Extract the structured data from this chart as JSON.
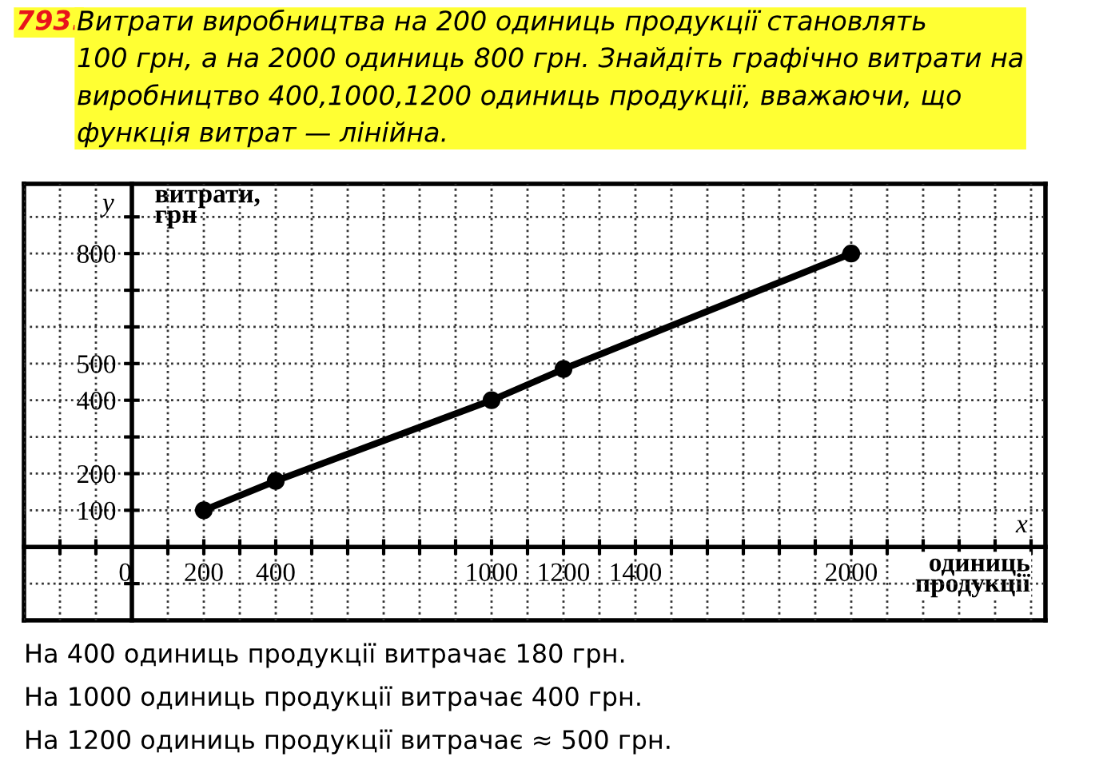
{
  "chart_data": {
    "type": "line",
    "title": "793.",
    "subtitle": "Витрати виробництва на 200 одиниць продукції становлять\n100 грн, а на 2000 одиниць 800 грн. Знайдіть графічно витрати на\nвиробництво 400,1000,1200 одиниць продукції, вважаючи, що\nфункція витрат — лінійна.",
    "xlabel": "одиниць\nпродукції",
    "ylabel": "витрати,\nгрн",
    "x": [
      200,
      400,
      1000,
      1200,
      2000
    ],
    "series": [
      {
        "color": "#000000",
        "values": [
          100,
          180,
          400,
          485,
          800
        ]
      }
    ],
    "marker": "circle",
    "line_style": "solid",
    "grid": true,
    "xlim": [
      -300,
      2540
    ],
    "ylim": [
      -200,
      990
    ],
    "xticks": [
      {
        "value": -300,
        "label": null
      },
      {
        "value": -200,
        "label": null
      },
      {
        "value": -100,
        "label": null
      },
      0,
      {
        "value": 100,
        "label": null
      },
      200,
      {
        "value": 300,
        "label": null
      },
      400,
      {
        "value": 500,
        "label": null
      },
      {
        "value": 600,
        "label": null
      },
      {
        "value": 700,
        "label": null
      },
      {
        "value": 800,
        "label": null
      },
      {
        "value": 900,
        "label": null
      },
      1000,
      {
        "value": 1100,
        "label": null
      },
      1200,
      {
        "value": 1300,
        "label": null
      },
      1400,
      {
        "value": 1500,
        "label": null
      },
      {
        "value": 1600,
        "label": null
      },
      {
        "value": 1700,
        "label": null
      },
      {
        "value": 1800,
        "label": null
      },
      {
        "value": 1900,
        "label": null
      },
      2000,
      {
        "value": 2100,
        "label": null
      },
      {
        "value": 2200,
        "label": null
      },
      {
        "value": 2300,
        "label": null
      },
      {
        "value": 2400,
        "label": null
      },
      {
        "value": 2500,
        "label": null
      }
    ],
    "yticks": [
      {
        "value": -100,
        "label": null
      },
      {
        "value": 100,
        "label": "100"
      },
      200,
      {
        "value": 300,
        "label": null
      },
      400,
      500,
      {
        "value": 600,
        "label": null
      },
      {
        "value": 700,
        "label": null
      },
      800,
      {
        "value": 900,
        "label": null
      }
    ],
    "annotations": [
      "y",
      "x",
      "На 400 одиниць продукції витрачає 180 грн.",
      "На 1000 одиниць продукції витрачає 400 грн.",
      "На 1200 одиниць продукції витрачає ≈ 500 грн."
    ]
  }
}
